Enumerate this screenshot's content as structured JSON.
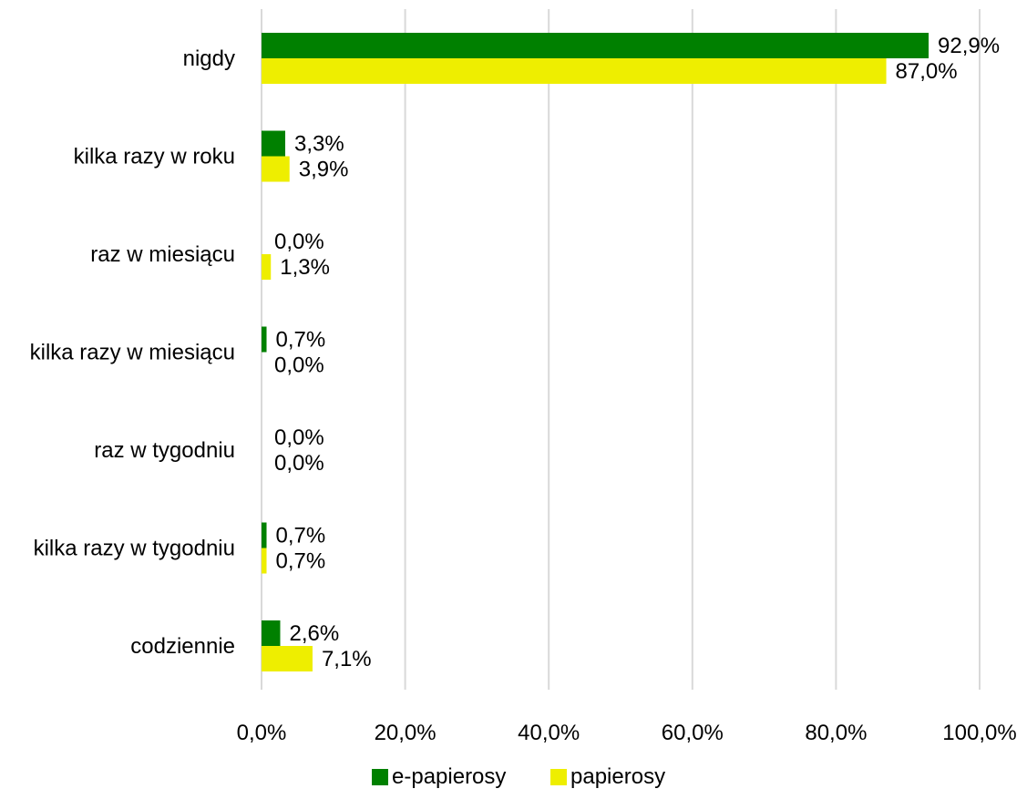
{
  "chart_data": {
    "type": "bar",
    "orientation": "horizontal",
    "categories": [
      "nigdy",
      "kilka razy w roku",
      "raz w miesiącu",
      "kilka razy w miesiącu",
      "raz w tygodniu",
      "kilka razy w tygodniu",
      "codziennie"
    ],
    "series": [
      {
        "name": "e-papierosy",
        "color": "#008000",
        "values": [
          92.9,
          3.3,
          0.0,
          0.7,
          0.0,
          0.7,
          2.6
        ],
        "labels": [
          "92,9%",
          "3,3%",
          "0,0%",
          "0,7%",
          "0,0%",
          "0,7%",
          "2,6%"
        ]
      },
      {
        "name": "papierosy",
        "color": "#eeee00",
        "values": [
          87.0,
          3.9,
          1.3,
          0.0,
          0.0,
          0.7,
          7.1
        ],
        "labels": [
          "87,0%",
          "3,9%",
          "1,3%",
          "0,0%",
          "0,0%",
          "0,7%",
          "7,1%"
        ]
      }
    ],
    "xlim": [
      0,
      100
    ],
    "x_ticks": [
      0,
      20,
      40,
      60,
      80,
      100
    ],
    "x_tick_labels": [
      "0,0%",
      "20,0%",
      "40,0%",
      "60,0%",
      "80,0%",
      "100,0%"
    ],
    "title": "",
    "xlabel": "",
    "ylabel": "",
    "grid": "vertical",
    "legend_position": "bottom-center"
  }
}
